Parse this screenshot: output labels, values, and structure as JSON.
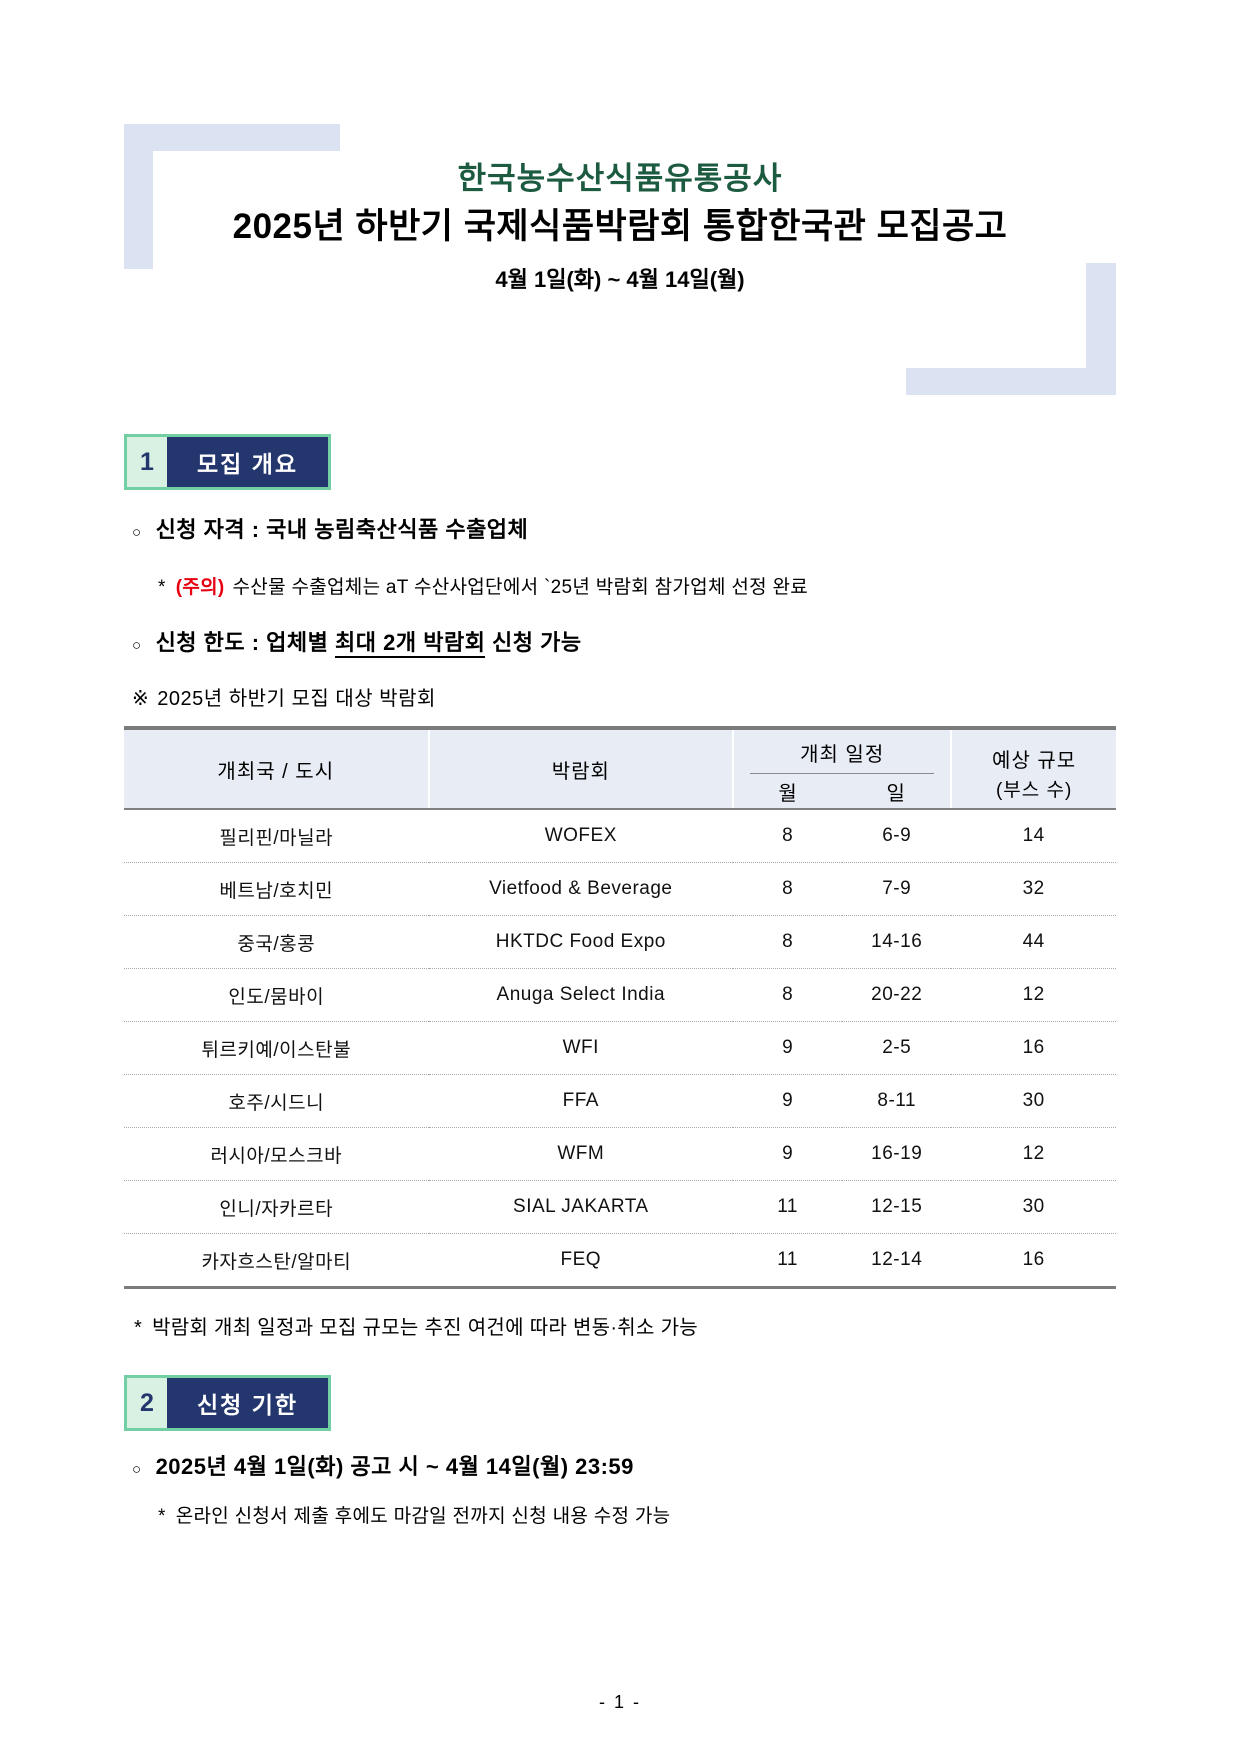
{
  "page": {
    "org_title": "한국농수산식품유통공사",
    "main_title": "2025년 하반기 국제식품박람회 통합한국관 모집공고",
    "date_range": "4월 1일(화) ~ 4월 14일(월)",
    "page_number": "- 1 -"
  },
  "colors": {
    "title_green": "#1c5b40",
    "badge_navy": "#23366e",
    "badge_mint_border": "#72cfa4",
    "badge_mint_bg": "#d9f1e3",
    "decoration_blue": "#dbe2f2",
    "table_header_bg": "#e8ecf5",
    "caution_red": "#e60012"
  },
  "markers": {
    "circle_bullet": "○",
    "star": "*",
    "reference": "※"
  },
  "section1": {
    "number": "1",
    "title": "모집 개요",
    "eligibility_text": "신청 자격 : 국내 농림축산식품 수출업체",
    "caution_label": "(주의)",
    "caution_text": "수산물 수출업체는 aT 수산사업단에서 `25년 박람회 참가업체 선정 완료",
    "limit_pre": "신청 한도 : 업체별 ",
    "limit_underlined": "최대 2개 박람회",
    "limit_post": " 신청 가능",
    "table_caption": "2025년 하반기 모집 대상 박람회",
    "table_footnote": "박람회 개최 일정과 모집 규모는 추진 여건에 따라 변동·취소 가능"
  },
  "table": {
    "headers": {
      "country": "개최국 / 도시",
      "expo": "박람회",
      "schedule": "개최 일정",
      "month": "월",
      "day": "일",
      "scale_line1": "예상 규모",
      "scale_line2": "(부스 수)"
    },
    "rows": [
      {
        "country": "필리핀/마닐라",
        "expo": "WOFEX",
        "month": "8",
        "day": "6-9",
        "booths": "14"
      },
      {
        "country": "베트남/호치민",
        "expo": "Vietfood & Beverage",
        "month": "8",
        "day": "7-9",
        "booths": "32"
      },
      {
        "country": "중국/홍콩",
        "expo": "HKTDC Food Expo",
        "month": "8",
        "day": "14-16",
        "booths": "44"
      },
      {
        "country": "인도/뭄바이",
        "expo": "Anuga Select India",
        "month": "8",
        "day": "20-22",
        "booths": "12"
      },
      {
        "country": "튀르키예/이스탄불",
        "expo": "WFI",
        "month": "9",
        "day": "2-5",
        "booths": "16"
      },
      {
        "country": "호주/시드니",
        "expo": "FFA",
        "month": "9",
        "day": "8-11",
        "booths": "30"
      },
      {
        "country": "러시아/모스크바",
        "expo": "WFM",
        "month": "9",
        "day": "16-19",
        "booths": "12"
      },
      {
        "country": "인니/자카르타",
        "expo": "SIAL JAKARTA",
        "month": "11",
        "day": "12-15",
        "booths": "30"
      },
      {
        "country": "카자흐스탄/알마티",
        "expo": "FEQ",
        "month": "11",
        "day": "12-14",
        "booths": "16"
      }
    ]
  },
  "section2": {
    "number": "2",
    "title": "신청 기한",
    "deadline_text": "2025년 4월 1일(화) 공고 시 ~ 4월 14일(월) 23:59",
    "edit_note": "온라인 신청서 제출 후에도 마감일 전까지 신청 내용 수정 가능"
  }
}
